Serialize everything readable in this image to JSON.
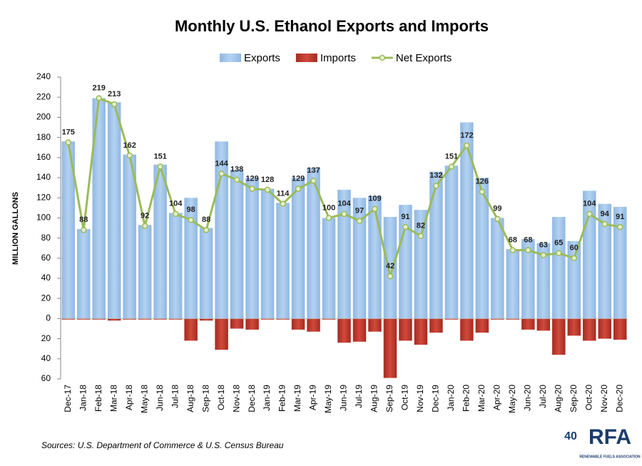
{
  "chart_data": {
    "type": "bar_line",
    "title": "Monthly U.S. Ethanol Exports and Imports",
    "y_label": "MILLION GALLONS",
    "source": "Sources: U.S. Department of Commerce & U.S. Census Bureau",
    "logo": {
      "number": "40",
      "name": "RFA",
      "tagline": "RENEWABLE FUELS ASSOCIATION"
    },
    "categories": [
      "Dec-17",
      "Jan-18",
      "Feb-18",
      "Mar-18",
      "Apr-18",
      "May-18",
      "Jun-18",
      "Jul-18",
      "Aug-18",
      "Sep-18",
      "Oct-18",
      "Nov-18",
      "Dec-18",
      "Jan-19",
      "Feb-19",
      "Mar-19",
      "Apr-19",
      "May-19",
      "Jun-19",
      "Jul-19",
      "Aug-19",
      "Sep-19",
      "Oct-19",
      "Nov-19",
      "Dec-19",
      "Jan-20",
      "Feb-20",
      "Mar-20",
      "Apr-20",
      "May-20",
      "Jun-20",
      "Jul-20",
      "Aug-20",
      "Sep-20",
      "Oct-20",
      "Nov-20",
      "Dec-20"
    ],
    "series": [
      {
        "name": "Exports",
        "kind": "bar",
        "color": "#9dc3e6",
        "values": [
          176,
          89,
          219,
          215,
          163,
          93,
          153,
          105,
          120,
          90,
          176,
          148,
          140,
          129,
          115,
          140,
          150,
          100,
          128,
          120,
          122,
          101,
          113,
          108,
          146,
          152,
          195,
          140,
          100,
          69,
          79,
          75,
          101,
          77,
          127,
          114,
          111
        ]
      },
      {
        "name": "Imports",
        "kind": "bar",
        "color": "#c0392b",
        "values": [
          -1,
          -1,
          -1,
          -2,
          -1,
          -1,
          -1,
          -1,
          -22,
          -2,
          -31,
          -10,
          -11,
          -1,
          -1,
          -11,
          -13,
          -1,
          -24,
          -23,
          -13,
          -59,
          -22,
          -26,
          -14,
          -1,
          -22,
          -14,
          -1,
          -1,
          -11,
          -12,
          -36,
          -17,
          -22,
          -20,
          -21
        ]
      },
      {
        "name": "Net Exports",
        "kind": "line",
        "color": "#9bbb59",
        "values": [
          175,
          88,
          219,
          213,
          162,
          92,
          151,
          104,
          98,
          88,
          144,
          138,
          129,
          128,
          114,
          129,
          137,
          100,
          104,
          97,
          109,
          42,
          91,
          82,
          132,
          151,
          172,
          126,
          99,
          68,
          68,
          63,
          65,
          60,
          104,
          94,
          91
        ]
      }
    ],
    "ylim": [
      -60,
      240
    ],
    "yticks": [
      240,
      220,
      200,
      180,
      160,
      140,
      120,
      100,
      80,
      60,
      40,
      20,
      0,
      {
        "value": -20,
        "label": "20"
      },
      {
        "value": -40,
        "label": "40"
      },
      {
        "value": -60,
        "label": "60"
      }
    ],
    "grid": false,
    "legend": "top"
  }
}
